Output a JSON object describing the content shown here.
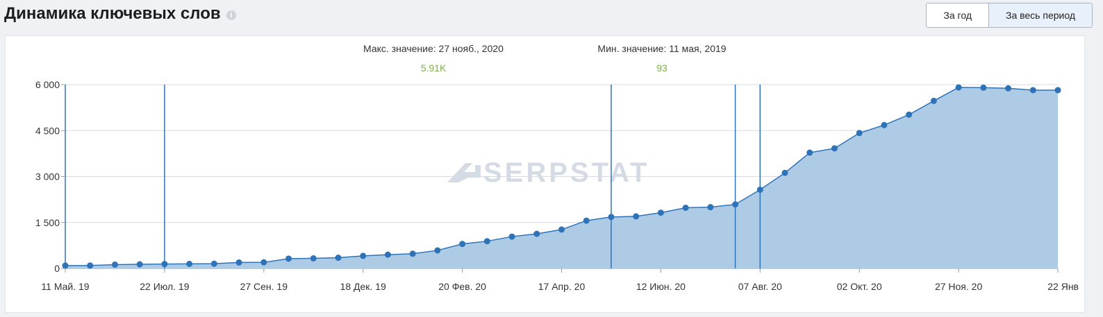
{
  "header": {
    "title": "Динамика ключевых слов",
    "info_icon": "info-icon"
  },
  "period_switch": {
    "year_label": "За год",
    "all_label": "За весь период",
    "active": "all"
  },
  "stats": {
    "max_label": "Макс. значение: 27 нояб., 2020",
    "max_value": "5.91K",
    "min_label": "Мин. значение: 11 мая, 2019",
    "min_value": "93"
  },
  "watermark": "SERPSTAT",
  "colors": {
    "line": "#2e72b8",
    "area": "#aecbe6",
    "value_green": "#7cb342",
    "grid": "#d6dae0"
  },
  "chart_data": {
    "type": "area",
    "ylim": [
      0,
      6000
    ],
    "y_ticks": [
      0,
      1500,
      3000,
      4500,
      6000
    ],
    "y_tick_labels": [
      "0",
      "1 500",
      "3 000",
      "4 500",
      "6 000"
    ],
    "grid": true,
    "x_tick_labels": [
      "11 Май. 19",
      "22 Июл. 19",
      "27 Сен. 19",
      "18 Дек. 19",
      "20 Фев. 20",
      "17 Апр. 20",
      "12 Июн. 20",
      "07 Авг. 20",
      "02 Окт. 20",
      "27 Ноя. 20",
      "22 Янв"
    ],
    "x_tick_points": [
      0,
      4,
      8,
      12,
      16,
      20,
      24,
      28,
      32,
      36,
      40
    ],
    "marker_points": [
      0,
      4,
      22,
      27,
      28
    ],
    "series": [
      {
        "values": [
          93,
          95,
          125,
          135,
          145,
          150,
          155,
          195,
          200,
          320,
          330,
          350,
          410,
          450,
          480,
          590,
          800,
          890,
          1040,
          1130,
          1270,
          1560,
          1680,
          1700,
          1820,
          1980,
          2000,
          2090,
          2570,
          3120,
          3780,
          3920,
          4420,
          4680,
          5020,
          5470,
          5910,
          5900,
          5880,
          5820,
          5820
        ]
      }
    ]
  }
}
